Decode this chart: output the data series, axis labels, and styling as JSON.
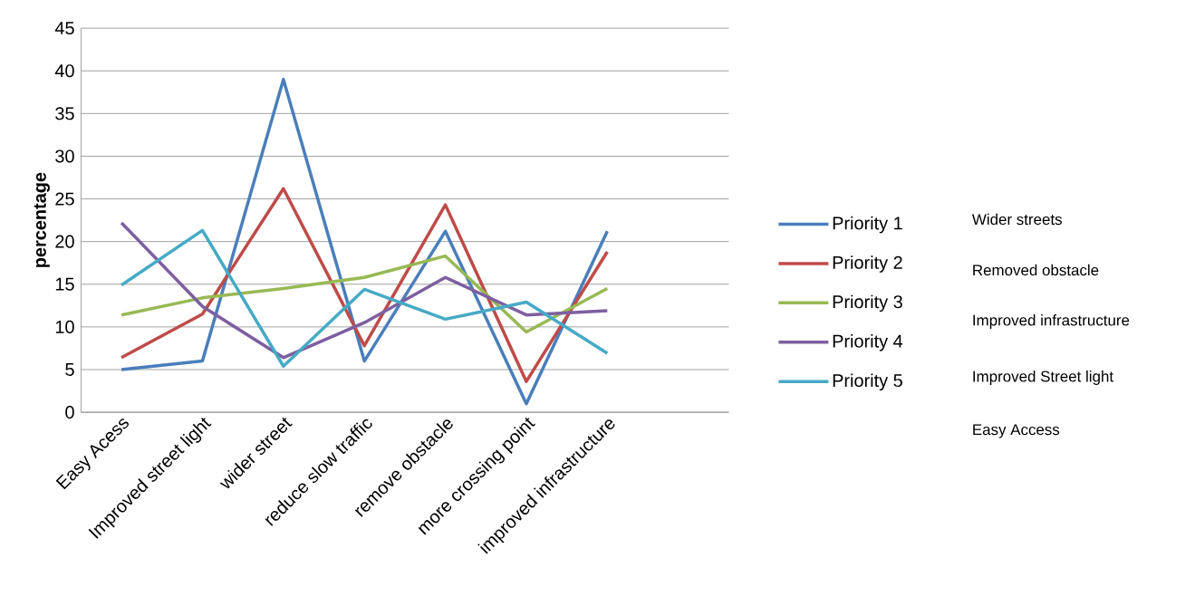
{
  "chart_data": {
    "type": "line",
    "ylabel": "percentage",
    "categories": [
      "Easy Acess",
      "Improved street light",
      "wider street",
      "reduce slow traffic",
      "remove obstacle",
      "more crossing point",
      "improved infrastructure"
    ],
    "series": [
      {
        "name": "Priority 1",
        "color": "#4a7ebb",
        "values": [
          5,
          6,
          39,
          6,
          21.2,
          1,
          21.2
        ]
      },
      {
        "name": "Priority 2",
        "color": "#be4b48",
        "values": [
          6.4,
          11.5,
          26.2,
          7.8,
          24.3,
          3.6,
          18.8
        ]
      },
      {
        "name": "Priority 3",
        "color": "#98b954",
        "values": [
          11.4,
          13.4,
          14.5,
          15.8,
          18.3,
          9.4,
          14.5
        ]
      },
      {
        "name": "Priority 4",
        "color": "#7d5fa0",
        "values": [
          22.2,
          12.4,
          6.4,
          10.5,
          15.8,
          11.4,
          11.9
        ]
      },
      {
        "name": "Priority 5",
        "color": "#46aac5",
        "values": [
          14.9,
          21.3,
          5.4,
          14.4,
          10.9,
          12.9,
          6.9
        ]
      }
    ],
    "ylim": [
      0,
      45
    ],
    "yticks": [
      0,
      5,
      10,
      15,
      20,
      25,
      30,
      35,
      40,
      45
    ],
    "grid": "y",
    "legend": "right",
    "marker": "none",
    "line_style": "solid",
    "annotations": [
      "Wider streets",
      "Removed obstacle",
      "Improved infrastructure",
      "Improved Street light",
      "Easy Access"
    ]
  }
}
